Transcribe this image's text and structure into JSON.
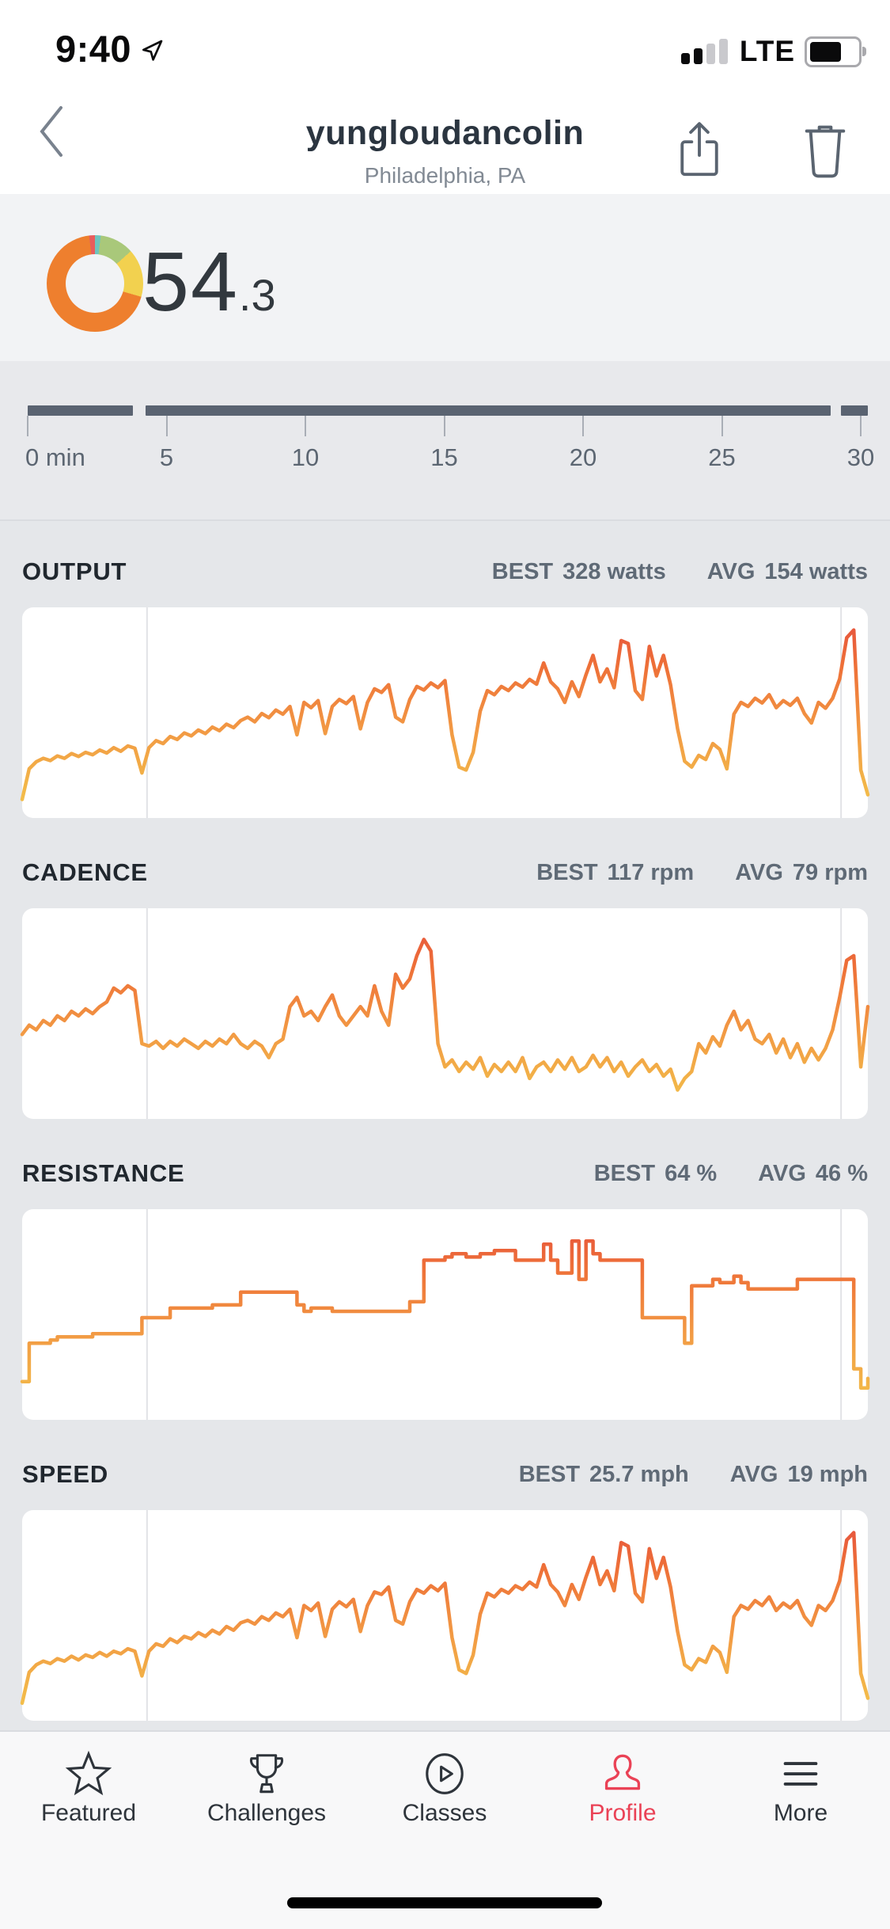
{
  "colors": {
    "accent_red": "#ea4256",
    "summary_bg": "#f2f3f5",
    "timeline_bg": "#e8e9ec",
    "metrics_bg": "#e5e7ea",
    "tabbar_bg": "#f8f8f9",
    "hairline": "#dadce0",
    "dark_text": "#20272e",
    "slate_text": "#5f6a76",
    "subtitle_text": "#828a94",
    "icon_gray": "#5a6470",
    "timeline_bar": "#5a6371",
    "tick": "#a9aeb6",
    "gridline": "#e2e3e6",
    "tab_text": "#2e343b",
    "score_text": "#32383e",
    "battery_outline": "#a9a9ad",
    "signal_off": "#c9c9cd",
    "signal_on": "#0b0b0c",
    "line_gradient": [
      [
        "0%",
        "#f3c64b"
      ],
      [
        "40%",
        "#f29b44"
      ],
      [
        "72%",
        "#ee7038"
      ],
      [
        "100%",
        "#e44b3f"
      ]
    ]
  },
  "status_bar": {
    "time": "9:40",
    "carrier_label": "LTE",
    "signal_bars_total": 4,
    "signal_bars_filled": 2,
    "battery_level": 0.75
  },
  "header": {
    "title": "yungloudancolin",
    "subtitle": "Philadelphia, PA"
  },
  "summary": {
    "score_main": "54",
    "score_decimal": ".3",
    "donut": {
      "segments": [
        {
          "name": "teal-zone",
          "color": "#6ec4be",
          "from": 0,
          "to": 7
        },
        {
          "name": "green-zone",
          "color": "#a9c87a",
          "from": 7,
          "to": 48
        },
        {
          "name": "yellow-zone",
          "color": "#f2d14f",
          "from": 48,
          "to": 106
        },
        {
          "name": "orange-zone",
          "color": "#ee7f2e",
          "from": 106,
          "to": 353
        },
        {
          "name": "red-zone",
          "color": "#e85c5c",
          "from": 353,
          "to": 360
        }
      ]
    }
  },
  "timeline": {
    "duration_min": 30,
    "tick_minutes": [
      0,
      5,
      10,
      15,
      20,
      25,
      30
    ],
    "labels": [
      "0 min",
      "5",
      "10",
      "15",
      "20",
      "25",
      "30"
    ],
    "segments_min": [
      [
        0,
        3.8
      ],
      [
        4.25,
        28.92
      ],
      [
        29.3,
        30.34
      ]
    ]
  },
  "chart_data": [
    {
      "type": "line",
      "title": "OUTPUT",
      "best_label": "BEST",
      "best_value": "328 watts",
      "avg_label": "AVG",
      "avg_value": "154 watts",
      "x_start_min": 0,
      "x_step_min": 0.25,
      "x_range_min": [
        0,
        30
      ],
      "ylim": [
        30,
        345
      ],
      "gridline_minutes": [
        4.43,
        29.05
      ],
      "step": false,
      "values": [
        40,
        92,
        104,
        110,
        106,
        114,
        110,
        118,
        113,
        120,
        116,
        124,
        119,
        128,
        122,
        131,
        127,
        85,
        128,
        140,
        135,
        147,
        142,
        153,
        148,
        158,
        152,
        163,
        157,
        168,
        162,
        174,
        180,
        172,
        186,
        179,
        192,
        185,
        198,
        150,
        205,
        196,
        208,
        152,
        198,
        210,
        203,
        215,
        160,
        205,
        228,
        222,
        235,
        180,
        172,
        210,
        232,
        226,
        238,
        230,
        242,
        150,
        95,
        90,
        120,
        190,
        225,
        218,
        232,
        225,
        238,
        231,
        244,
        236,
        272,
        240,
        228,
        205,
        240,
        215,
        252,
        285,
        240,
        262,
        230,
        310,
        305,
        225,
        210,
        300,
        250,
        285,
        235,
        160,
        105,
        95,
        115,
        108,
        135,
        125,
        92,
        185,
        205,
        198,
        212,
        204,
        218,
        196,
        208,
        200,
        212,
        186,
        170,
        205,
        195,
        212,
        245,
        315,
        328,
        90,
        48
      ]
    },
    {
      "type": "line",
      "title": "CADENCE",
      "best_label": "BEST",
      "best_value": "117 rpm",
      "avg_label": "AVG",
      "avg_value": "79 rpm",
      "x_start_min": 0,
      "x_step_min": 0.25,
      "x_range_min": [
        0,
        30
      ],
      "ylim": [
        45,
        125
      ],
      "gridline_minutes": [
        4.43,
        29.05
      ],
      "step": false,
      "values": [
        76,
        80,
        78,
        82,
        80,
        84,
        82,
        86,
        84,
        87,
        85,
        88,
        90,
        96,
        94,
        97,
        95,
        72,
        71,
        73,
        70,
        73,
        71,
        74,
        72,
        70,
        73,
        71,
        74,
        72,
        76,
        72,
        70,
        73,
        71,
        66,
        72,
        74,
        88,
        92,
        84,
        86,
        82,
        88,
        93,
        84,
        80,
        84,
        88,
        84,
        97,
        86,
        80,
        102,
        96,
        100,
        110,
        117,
        112,
        72,
        62,
        65,
        60,
        64,
        61,
        66,
        58,
        63,
        60,
        64,
        60,
        66,
        57,
        62,
        64,
        60,
        65,
        61,
        66,
        60,
        62,
        67,
        62,
        66,
        60,
        64,
        58,
        62,
        65,
        60,
        63,
        58,
        61,
        52,
        57,
        60,
        72,
        68,
        75,
        71,
        80,
        86,
        78,
        82,
        74,
        72,
        76,
        68,
        74,
        66,
        72,
        64,
        70,
        65,
        70,
        78,
        92,
        108,
        110,
        62,
        88
      ]
    },
    {
      "type": "line",
      "title": "RESISTANCE",
      "best_label": "BEST",
      "best_value": "64 %",
      "avg_label": "AVG",
      "avg_value": "46 %",
      "x_start_min": 0,
      "x_step_min": 0.25,
      "x_range_min": [
        0,
        30
      ],
      "ylim": [
        12,
        70
      ],
      "gridline_minutes": [
        4.43,
        29.05
      ],
      "step": true,
      "values": [
        20,
        32,
        32,
        32,
        33,
        34,
        34,
        34,
        34,
        34,
        35,
        35,
        35,
        35,
        35,
        35,
        35,
        40,
        40,
        40,
        40,
        43,
        43,
        43,
        43,
        43,
        43,
        44,
        44,
        44,
        44,
        48,
        48,
        48,
        48,
        48,
        48,
        48,
        48,
        44,
        42,
        43,
        43,
        43,
        42,
        42,
        42,
        42,
        42,
        42,
        42,
        42,
        42,
        42,
        42,
        45,
        45,
        58,
        58,
        58,
        59,
        60,
        60,
        59,
        59,
        60,
        60,
        61,
        61,
        61,
        58,
        58,
        58,
        58,
        63,
        58,
        54,
        54,
        64,
        52,
        64,
        60,
        58,
        58,
        58,
        58,
        58,
        58,
        40,
        40,
        40,
        40,
        40,
        40,
        32,
        50,
        50,
        50,
        52,
        51,
        51,
        53,
        51,
        49,
        49,
        49,
        49,
        49,
        49,
        49,
        52,
        52,
        52,
        52,
        52,
        52,
        52,
        52,
        24,
        18,
        21
      ]
    },
    {
      "type": "line",
      "title": "SPEED",
      "best_label": "BEST",
      "best_value": "25.7 mph",
      "avg_label": "AVG",
      "avg_value": "19 mph",
      "x_start_min": 0,
      "x_step_min": 0.25,
      "x_range_min": [
        0,
        30
      ],
      "ylim": [
        11.5,
        26.5
      ],
      "gridline_minutes": [
        4.43,
        29.05
      ],
      "step": false,
      "values": [
        11.9,
        14.4,
        15.0,
        15.3,
        15.1,
        15.5,
        15.3,
        15.7,
        15.4,
        15.8,
        15.6,
        16.0,
        15.7,
        16.1,
        15.9,
        16.3,
        16.1,
        14.1,
        16.1,
        16.7,
        16.5,
        17.1,
        16.8,
        17.3,
        17.1,
        17.6,
        17.3,
        17.8,
        17.5,
        18.1,
        17.8,
        18.4,
        18.6,
        18.3,
        18.9,
        18.6,
        19.2,
        18.9,
        19.5,
        17.2,
        19.8,
        19.4,
        20.0,
        17.3,
        19.5,
        20.1,
        19.7,
        20.3,
        17.7,
        19.8,
        20.9,
        20.7,
        21.3,
        18.6,
        18.3,
        20.1,
        21.1,
        20.8,
        21.4,
        21.0,
        21.6,
        17.2,
        14.6,
        14.3,
        15.8,
        19.1,
        20.8,
        20.5,
        21.1,
        20.8,
        21.4,
        21.1,
        21.7,
        21.3,
        23.1,
        21.5,
        20.9,
        19.8,
        21.5,
        20.3,
        22.1,
        23.7,
        21.5,
        22.6,
        21.0,
        24.9,
        24.6,
        20.8,
        20.1,
        24.4,
        22.0,
        23.7,
        21.3,
        17.7,
        15.0,
        14.6,
        15.5,
        15.2,
        16.5,
        16.0,
        14.4,
        18.9,
        19.8,
        19.5,
        20.2,
        19.8,
        20.5,
        19.4,
        20.0,
        19.6,
        20.2,
        18.9,
        18.2,
        19.8,
        19.4,
        20.2,
        21.8,
        25.1,
        25.7,
        14.3,
        12.3
      ]
    }
  ],
  "tabbar": {
    "items": [
      {
        "label": "Featured",
        "icon": "star",
        "active": false
      },
      {
        "label": "Challenges",
        "icon": "trophy",
        "active": false
      },
      {
        "label": "Classes",
        "icon": "play",
        "active": false
      },
      {
        "label": "Profile",
        "icon": "person",
        "active": true
      },
      {
        "label": "More",
        "icon": "menu",
        "active": false
      }
    ]
  }
}
